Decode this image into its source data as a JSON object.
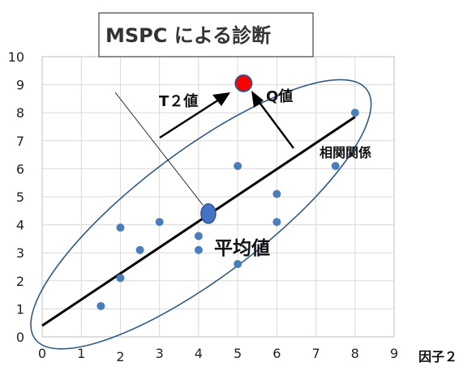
{
  "title": "MSPC による診断",
  "chart_data": {
    "type": "scatter",
    "title": "MSPC による診断",
    "xlabel": "因子２",
    "ylabel": "",
    "xlim": [
      0,
      9
    ],
    "ylim": [
      0,
      10
    ],
    "x_ticks": [
      "0",
      "1",
      "2",
      "3",
      "4",
      "5",
      "6",
      "7",
      "8",
      "9"
    ],
    "y_ticks": [
      "0",
      "1",
      "2",
      "3",
      "4",
      "5",
      "6",
      "7",
      "8",
      "9",
      "10"
    ],
    "grid": true,
    "series": [
      {
        "points": [
          {
            "x": 1.5,
            "y": 1.1
          },
          {
            "x": 2.0,
            "y": 2.1
          },
          {
            "x": 2.0,
            "y": 3.9
          },
          {
            "x": 2.5,
            "y": 3.1
          },
          {
            "x": 3.0,
            "y": 4.1
          },
          {
            "x": 4.0,
            "y": 3.6
          },
          {
            "x": 4.0,
            "y": 3.1
          },
          {
            "x": 5.0,
            "y": 6.1
          },
          {
            "x": 5.0,
            "y": 2.6
          },
          {
            "x": 6.0,
            "y": 5.1
          },
          {
            "x": 6.0,
            "y": 4.1
          },
          {
            "x": 7.5,
            "y": 6.1
          },
          {
            "x": 8.0,
            "y": 8.0
          }
        ],
        "color": "#4a7ebb"
      }
    ],
    "mean_point": {
      "x": 4.25,
      "y": 4.4,
      "label": "平均値"
    },
    "anomaly_point": {
      "x": 5.15,
      "y": 9.05,
      "color": "#ff0000"
    },
    "correlation_line": {
      "from": {
        "x": 0,
        "y": 0.4
      },
      "to": {
        "x": 8.0,
        "y": 7.85
      },
      "label": "相関関係"
    },
    "t2_label": "T２値",
    "q_label": "Q値",
    "colors": {
      "points": "#4a7ebb",
      "ellipse": "#2f5a86",
      "anomaly": "#ff0000",
      "line": "#000000",
      "grid": "#d9d9d9"
    }
  }
}
